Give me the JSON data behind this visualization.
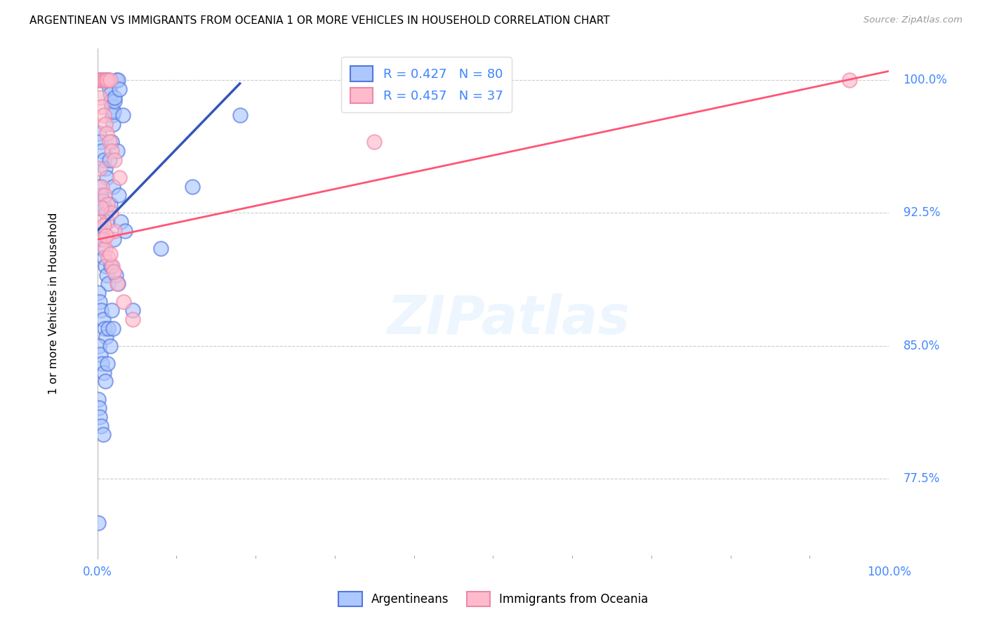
{
  "title": "ARGENTINEAN VS IMMIGRANTS FROM OCEANIA 1 OR MORE VEHICLES IN HOUSEHOLD CORRELATION CHART",
  "source": "Source: ZipAtlas.com",
  "ylabel": "1 or more Vehicles in Household",
  "ymin": 73.0,
  "ymax": 101.8,
  "xmin": 0.0,
  "xmax": 100.0,
  "ytick_values": [
    77.5,
    85.0,
    92.5,
    100.0
  ],
  "xtick_left": "0.0%",
  "xtick_right": "100.0%",
  "blue_face": "#adc8ff",
  "blue_edge": "#5577dd",
  "pink_face": "#ffbbcc",
  "pink_edge": "#ee88aa",
  "blue_line_color": "#3355bb",
  "pink_line_color": "#ff5577",
  "legend_r1": "R = 0.427   N = 80",
  "legend_r2": "R = 0.457   N = 37",
  "legend_label1": "Argentineans",
  "legend_label2": "Immigrants from Oceania",
  "watermark": "ZIPatlas",
  "blue_scatter_x": [
    0.3,
    0.5,
    0.7,
    0.8,
    0.9,
    1.0,
    1.1,
    1.2,
    1.3,
    1.4,
    1.5,
    1.6,
    1.7,
    1.8,
    1.9,
    2.0,
    2.1,
    2.2,
    2.4,
    2.6,
    0.2,
    0.4,
    0.6,
    0.8,
    1.0,
    1.2,
    1.5,
    1.8,
    2.2,
    2.8,
    0.3,
    0.5,
    0.7,
    0.9,
    1.1,
    1.3,
    1.6,
    2.0,
    2.5,
    3.2,
    0.2,
    0.4,
    0.6,
    0.8,
    1.0,
    1.2,
    1.4,
    1.7,
    2.1,
    2.7,
    0.1,
    0.3,
    0.5,
    0.7,
    0.9,
    1.1,
    1.4,
    1.8,
    2.3,
    3.0,
    0.2,
    0.4,
    0.6,
    0.8,
    1.0,
    1.3,
    1.6,
    2.0,
    2.6,
    3.5,
    0.1,
    0.2,
    0.3,
    0.5,
    0.7,
    4.5,
    8.0,
    12.0,
    18.0,
    0.1
  ],
  "blue_scatter_y": [
    100.0,
    100.0,
    100.0,
    100.0,
    100.0,
    100.0,
    100.0,
    100.0,
    100.0,
    100.0,
    99.5,
    99.2,
    98.8,
    98.5,
    98.0,
    97.5,
    98.2,
    98.8,
    100.0,
    100.0,
    97.0,
    96.5,
    96.0,
    95.5,
    95.0,
    94.5,
    95.5,
    96.5,
    99.0,
    99.5,
    94.0,
    93.5,
    93.2,
    92.8,
    92.5,
    92.0,
    93.0,
    94.0,
    96.0,
    98.0,
    91.5,
    91.0,
    90.5,
    90.0,
    89.5,
    89.0,
    88.5,
    89.5,
    91.0,
    93.5,
    88.0,
    87.5,
    87.0,
    86.5,
    86.0,
    85.5,
    86.0,
    87.0,
    89.0,
    92.0,
    85.0,
    84.5,
    84.0,
    83.5,
    83.0,
    84.0,
    85.0,
    86.0,
    88.5,
    91.5,
    82.0,
    81.5,
    81.0,
    80.5,
    80.0,
    87.0,
    90.5,
    94.0,
    98.0,
    75.0
  ],
  "pink_scatter_x": [
    0.3,
    0.5,
    0.7,
    0.9,
    1.1,
    1.3,
    1.6,
    0.4,
    0.6,
    0.8,
    1.0,
    1.2,
    1.5,
    1.8,
    2.2,
    2.8,
    0.3,
    0.6,
    0.9,
    1.3,
    1.7,
    2.2,
    0.4,
    0.7,
    1.0,
    1.4,
    1.9,
    2.5,
    3.3,
    4.5,
    0.5,
    0.8,
    1.1,
    1.6,
    2.1,
    35.0,
    95.0
  ],
  "pink_scatter_y": [
    100.0,
    100.0,
    100.0,
    100.0,
    100.0,
    100.0,
    100.0,
    99.0,
    98.5,
    98.0,
    97.5,
    97.0,
    96.5,
    96.0,
    95.5,
    94.5,
    95.0,
    94.0,
    93.5,
    93.0,
    92.5,
    91.5,
    92.0,
    91.0,
    90.5,
    90.0,
    89.5,
    88.5,
    87.5,
    86.5,
    92.8,
    91.8,
    91.2,
    90.2,
    89.2,
    96.5,
    100.0
  ],
  "blue_line_x": [
    0.0,
    18.0
  ],
  "blue_line_y": [
    91.5,
    99.8
  ],
  "pink_line_x": [
    0.0,
    100.0
  ],
  "pink_line_y": [
    91.0,
    100.5
  ]
}
